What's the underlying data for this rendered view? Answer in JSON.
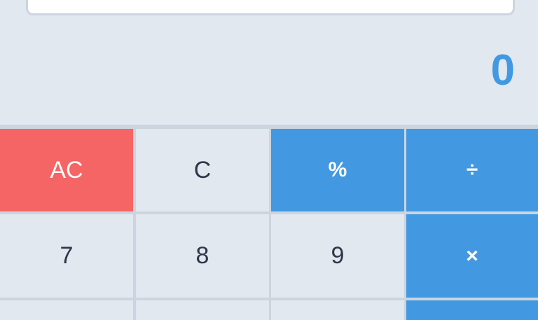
{
  "display": {
    "value": "0"
  },
  "buttons": [
    [
      "AC",
      "C",
      "%",
      "÷"
    ],
    [
      "7",
      "8",
      "9",
      "×"
    ]
  ]
}
